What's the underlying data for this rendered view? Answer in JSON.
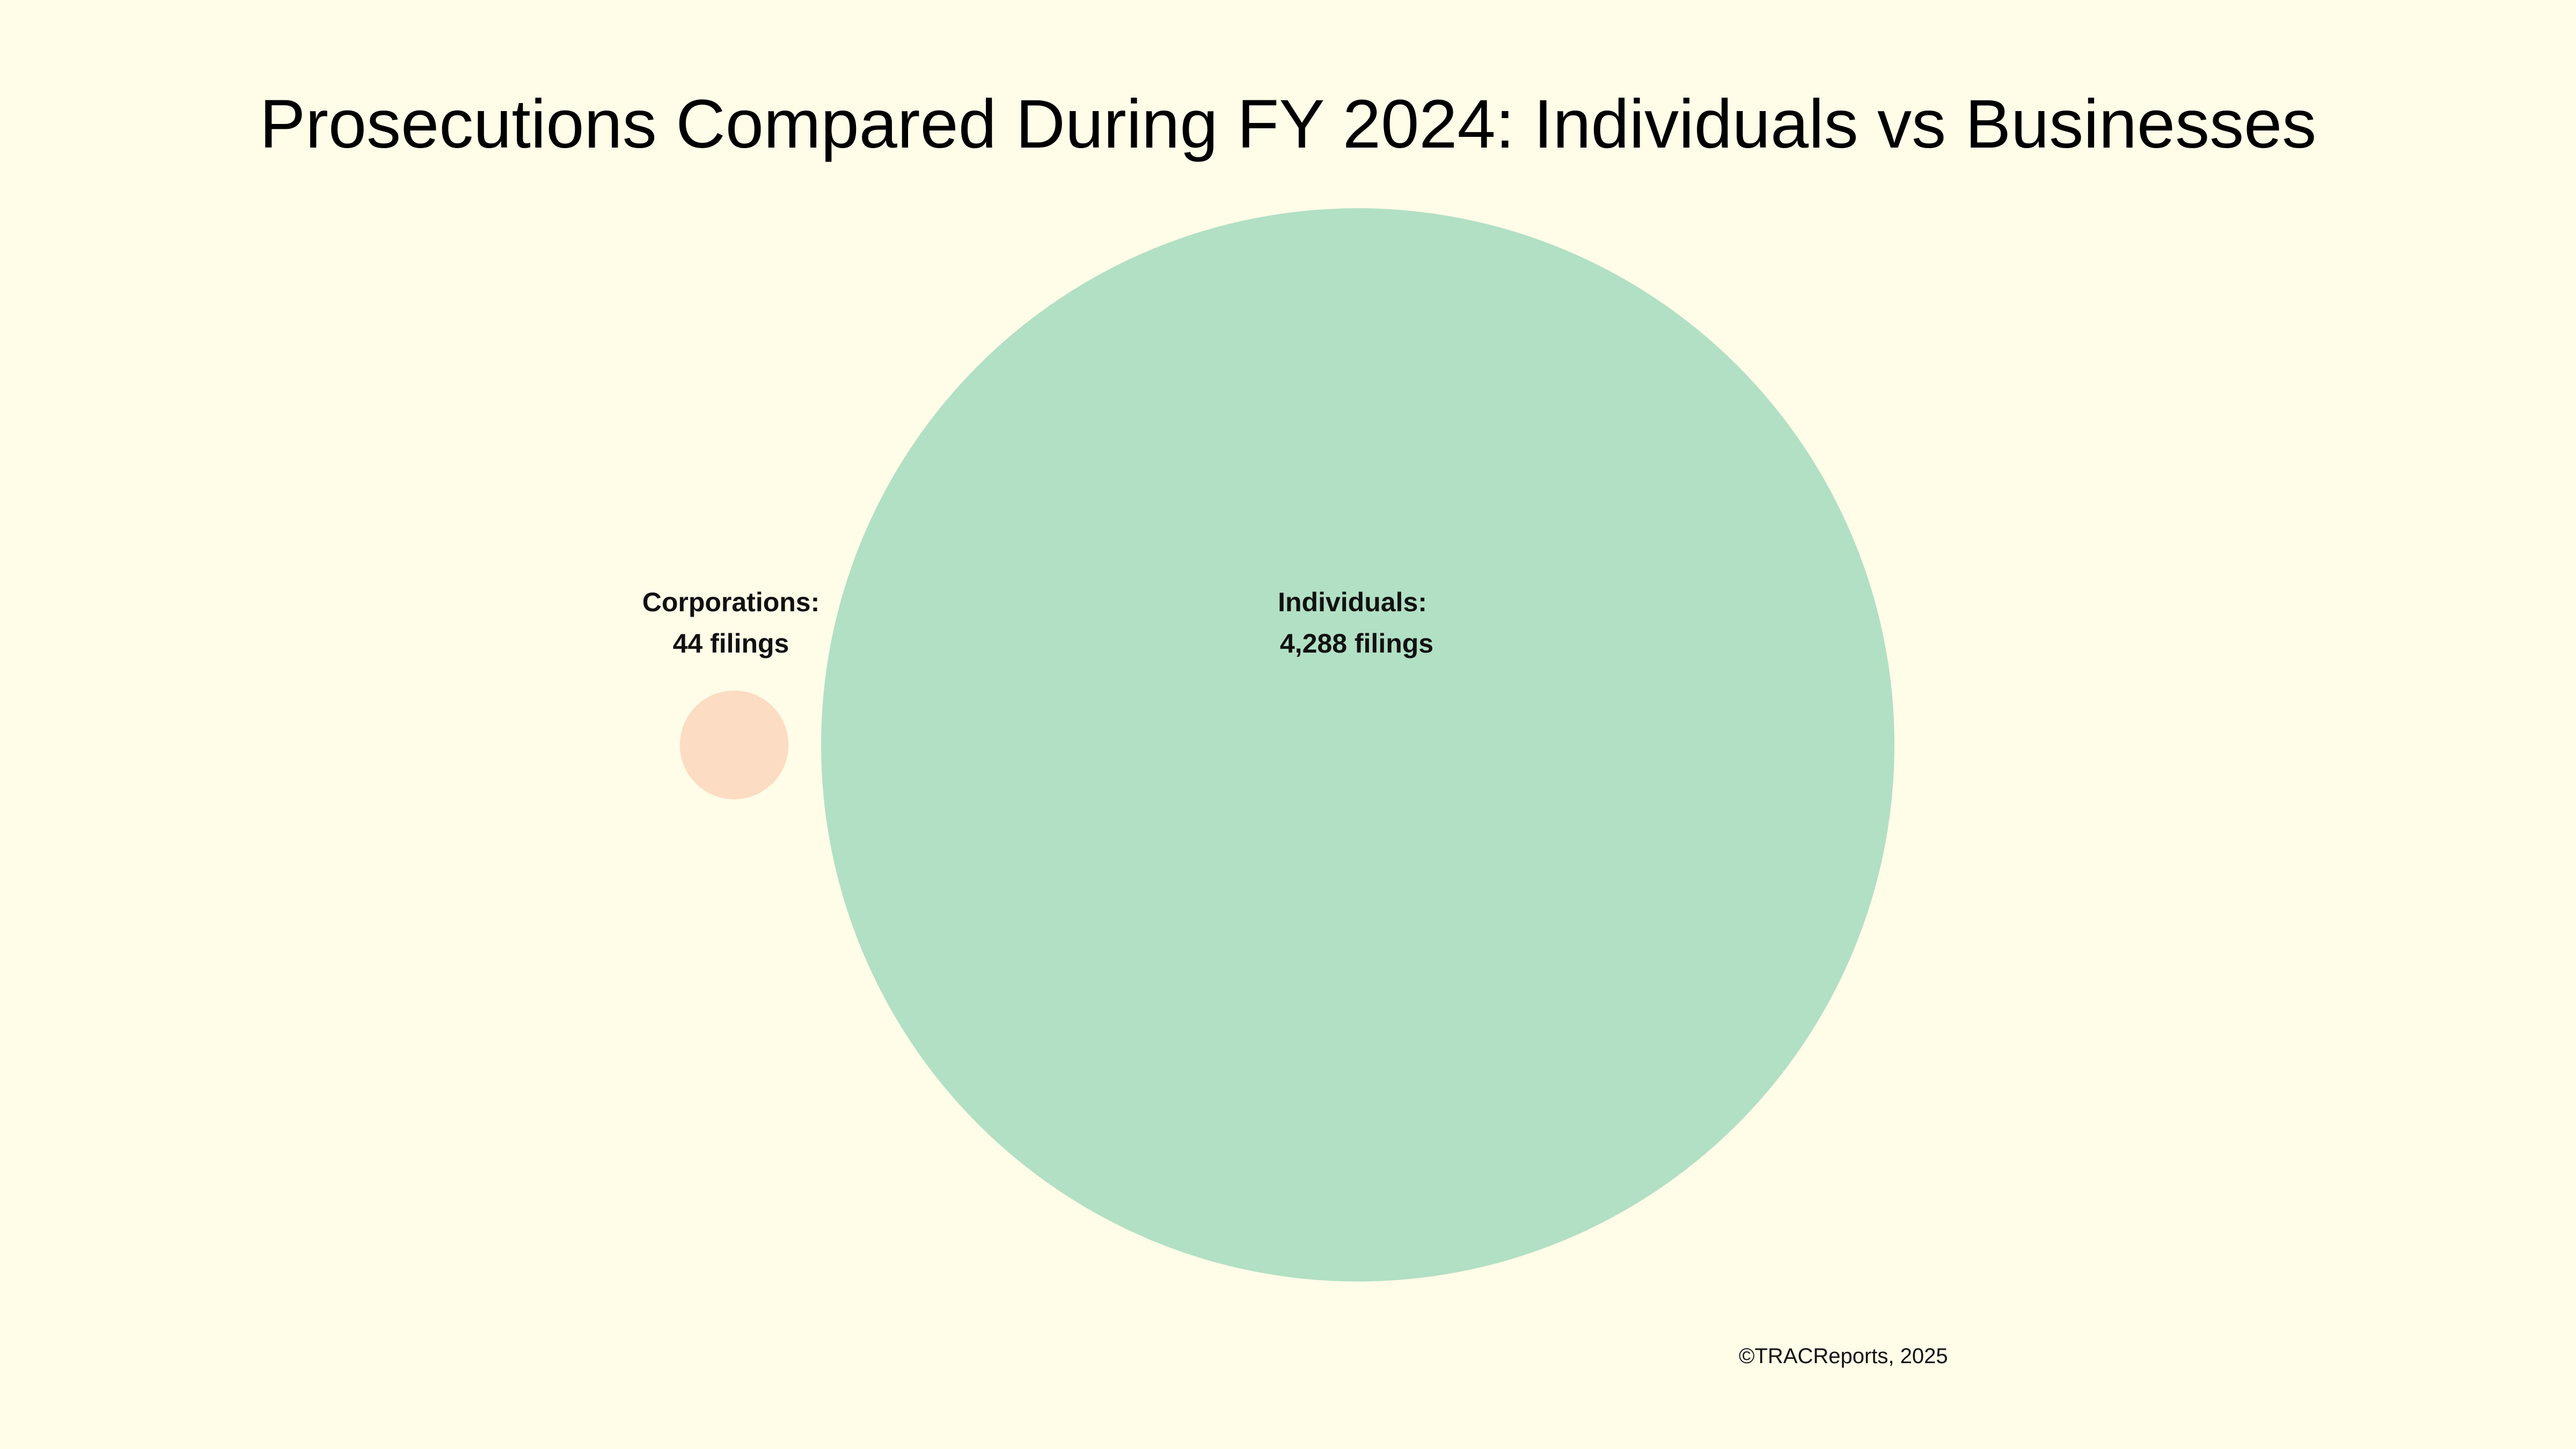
{
  "chart_data": {
    "type": "bubble",
    "title": "Prosecutions Compared During FY 2024: Individuals vs Businesses",
    "series": [
      {
        "label_line1": "Corporations:",
        "label_line2": "44 filings",
        "value": 44,
        "color": "#FCDCC2"
      },
      {
        "label_line1": "Individuals:",
        "label_line2": "4,288 filings",
        "value": 4288,
        "color": "#B2E0C4"
      }
    ],
    "legend": "none",
    "grid": false
  },
  "credit": "©TRACReports, 2025",
  "colors": {
    "background": "#FFFCE8"
  }
}
